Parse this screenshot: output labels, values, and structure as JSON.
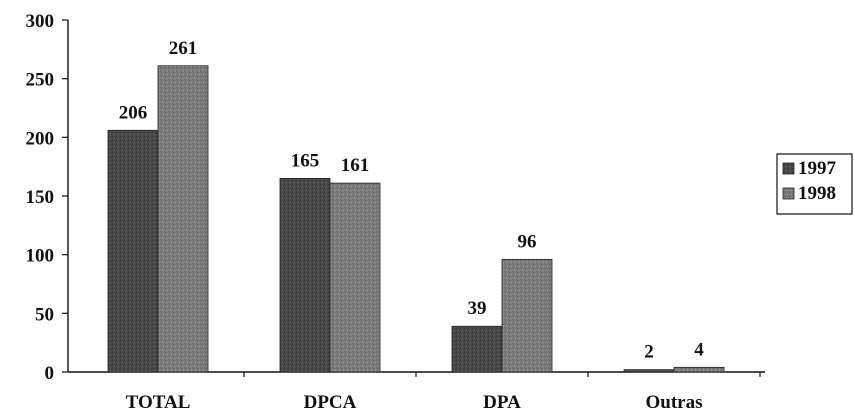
{
  "chart_data": {
    "type": "bar",
    "categories": [
      "TOTAL",
      "DPCA",
      "DPA",
      "Outras"
    ],
    "series": [
      {
        "name": "1997",
        "values": [
          206,
          165,
          39,
          2
        ]
      },
      {
        "name": "1998",
        "values": [
          261,
          161,
          96,
          4
        ]
      }
    ],
    "data_labels": [
      [
        "206",
        "165",
        "39",
        "2"
      ],
      [
        "261",
        "161",
        "96",
        "4"
      ]
    ],
    "y_ticks": [
      "0",
      "50",
      "100",
      "150",
      "200",
      "250",
      "300"
    ],
    "ylim": [
      0,
      300
    ],
    "grid": false,
    "legend_position": "right",
    "colors": {
      "1997": "#4a4a4a",
      "1998": "#7d7d7d"
    }
  }
}
